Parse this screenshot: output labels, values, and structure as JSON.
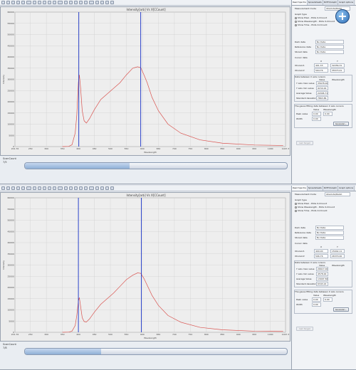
{
  "app": {
    "chart_title": "Intensity[arb] Vs X[CCount]",
    "tabs": [
      "Read Spectra",
      "Spreadsheets",
      "SDTH(Graph)",
      "Graph options"
    ],
    "measurement_mode_label": "Measurement mode",
    "measurement_mode_value": "Absolute/Relat.",
    "graph_type_label": "Graph type",
    "graph_type_options": [
      "Show Pixel - Plots X-CCount",
      "Show Wavelength - Plots X-CCount",
      "Show Time - Plots X-CCount"
    ],
    "graph_type_selected": 1,
    "dark_data_label": "Dark data",
    "reference_data_label": "Reference data",
    "stored_data_label": "Stored data",
    "no_data": "No Data",
    "cursor_data_label": "Cursor data",
    "cursor_x_header": "X",
    "cursor_y_header": "Y",
    "cursor1_label": "XCursor1",
    "cursor2_label": "XCursor2",
    "between_cursors_label": "Data between X axis cursors",
    "val_header_value": "Value",
    "val_header_wave": "Wavelength",
    "y_max_label": "Y axis max value",
    "y_min_label": "Y axis min value",
    "avg_label": "Average Value",
    "std_label": "Standard deviation",
    "gauss_label": "The gauss fitting data between X axis cursors",
    "gauss_header_value": "Value",
    "gauss_header_wave": "Wavelength",
    "peak_label": "Peak value",
    "fwhm_label": "Width",
    "gauss_btn": "Gaussian...",
    "save_btn": "Get Target",
    "scan_label": "ScanCount"
  },
  "panes": [
    {
      "scan_value": "7/5",
      "progress": 0.4,
      "cursor1": {
        "x": "401.33",
        "y": "32256.31"
      },
      "cursor2": {
        "x": "594.76",
        "y": "35573.41"
      },
      "ymax": {
        "value": "35678.00",
        "wave": ""
      },
      "ymin": {
        "value": "9150.00",
        "wave": ""
      },
      "avg": {
        "value": "22006.71",
        "wave": ""
      },
      "std": {
        "value": "7863.86",
        "wave": ""
      },
      "peak": {
        "value": "0.00",
        "wave": "0.00"
      },
      "width": {
        "value": "0.00",
        "wave": ""
      }
    },
    {
      "scan_value": "7/8",
      "progress": 0.29,
      "cursor1": {
        "x": "400.00",
        "y": "15042.11"
      },
      "cursor2": {
        "x": "596.76",
        "y": "26370.00"
      },
      "ymax": {
        "value": "26617.00",
        "wave": ""
      },
      "ymin": {
        "value": "4578.00",
        "wave": ""
      },
      "avg": {
        "value": "13007.56",
        "wave": ""
      },
      "std": {
        "value": "6343.22",
        "wave": ""
      },
      "peak": {
        "value": "0.00",
        "wave": "0.00"
      },
      "width": {
        "value": "0.00",
        "wave": ""
      }
    }
  ],
  "chart_data": [
    {
      "type": "line",
      "title": "Intensity[arb] Vs X[CCount]",
      "xlabel": "Wavelength",
      "ylabel": "Intensity",
      "xlim": [
        201.76,
        1047.3
      ],
      "ylim": [
        0,
        60000
      ],
      "x_ticks": [
        "201.76",
        "250",
        "300",
        "350",
        "400",
        "450",
        "500",
        "550",
        "600",
        "650",
        "700",
        "750",
        "800",
        "850",
        "900",
        "950",
        "1000",
        "1047.3"
      ],
      "y_ticks": [
        "0",
        "5000",
        "10000",
        "15000",
        "20000",
        "25000",
        "30000",
        "35000",
        "40000",
        "45000",
        "50000",
        "55000",
        "60000"
      ],
      "cursors": [
        401.33,
        594.76
      ],
      "series": [
        {
          "color": "#d9534f",
          "x": [
            350,
            370,
            380,
            390,
            395,
            400,
            403,
            407,
            412,
            418,
            425,
            435,
            450,
            470,
            490,
            510,
            530,
            550,
            570,
            585,
            595,
            605,
            615,
            630,
            650,
            680,
            720,
            780,
            850,
            950,
            1040
          ],
          "y": [
            0,
            100,
            800,
            6000,
            14000,
            28500,
            32000,
            26000,
            16000,
            11500,
            10500,
            12500,
            16500,
            21000,
            23500,
            26000,
            28500,
            32000,
            35000,
            35600,
            35200,
            32000,
            28500,
            22000,
            16000,
            10000,
            6000,
            3000,
            1500,
            700,
            500
          ]
        }
      ]
    },
    {
      "type": "line",
      "title": "Intensity[arb] Vs X[CCount]",
      "xlabel": "Wavelength",
      "ylabel": "Intensity",
      "xlim": [
        201.76,
        1047.3
      ],
      "ylim": [
        0,
        60000
      ],
      "x_ticks": [
        "201.76",
        "250",
        "300",
        "350",
        "400",
        "450",
        "500",
        "550",
        "600",
        "650",
        "700",
        "750",
        "800",
        "850",
        "900",
        "950",
        "1000",
        "1047.3"
      ],
      "y_ticks": [
        "0",
        "5000",
        "10000",
        "15000",
        "20000",
        "25000",
        "30000",
        "35000",
        "40000",
        "45000",
        "50000",
        "55000",
        "60000"
      ],
      "cursors": [
        400.0,
        596.76
      ],
      "series": [
        {
          "color": "#d9534f",
          "x": [
            350,
            370,
            380,
            390,
            395,
            400,
            403,
            407,
            412,
            418,
            425,
            435,
            450,
            470,
            490,
            510,
            530,
            550,
            570,
            585,
            595,
            605,
            615,
            630,
            650,
            680,
            720,
            780,
            850,
            950,
            1040
          ],
          "y": [
            0,
            100,
            500,
            3000,
            7500,
            14000,
            15500,
            11500,
            6500,
            4800,
            4600,
            6000,
            9000,
            12500,
            15000,
            17500,
            20500,
            23500,
            25500,
            26500,
            26300,
            24000,
            21000,
            16500,
            12000,
            7500,
            4500,
            2200,
            1100,
            500,
            400
          ]
        }
      ]
    }
  ]
}
